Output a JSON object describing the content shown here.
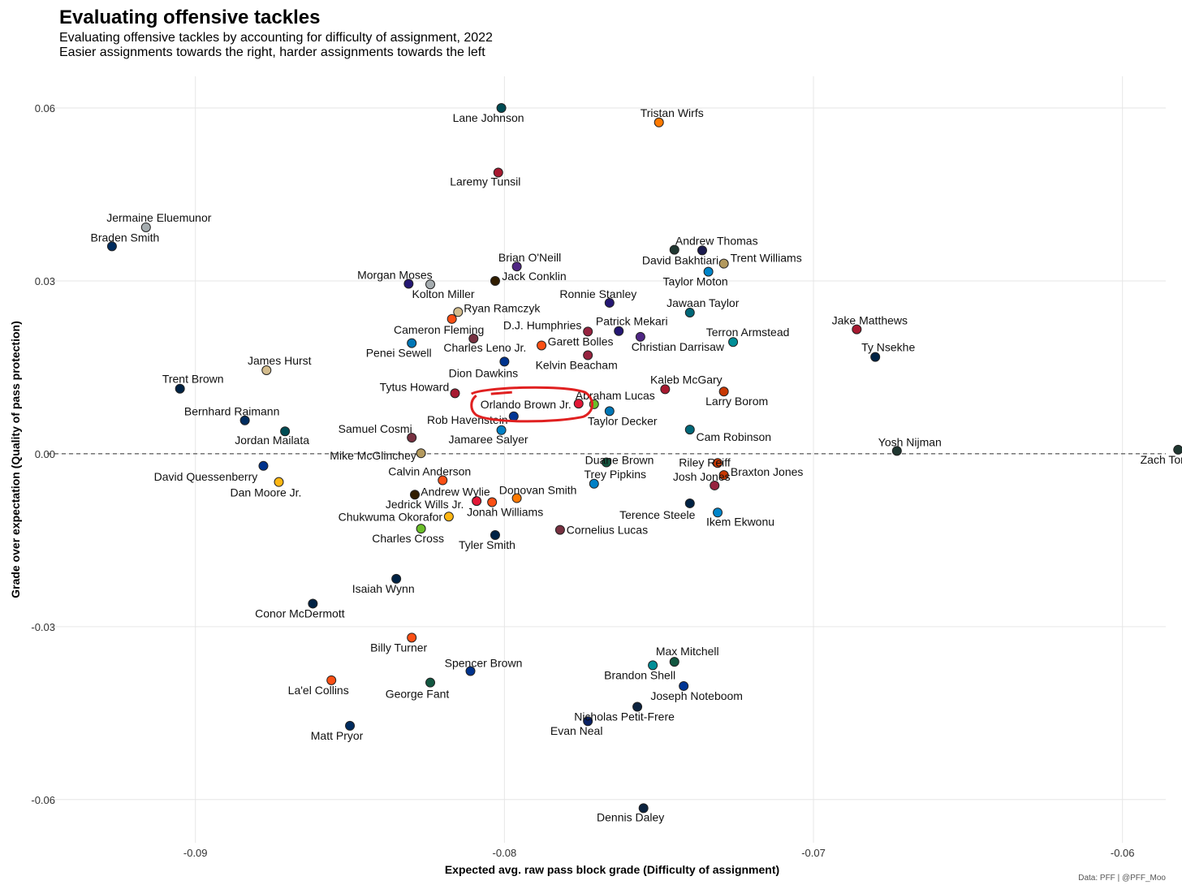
{
  "chart_data": {
    "type": "scatter",
    "title": "Evaluating offensive tackles",
    "subtitle": "Evaluating offensive tackles by accounting for difficulty of assignment, 2022",
    "subtitle2": "Easier assignments towards the right, harder assignments towards the left",
    "xlabel": "Expected avg. raw pass block grade (Difficulty of assignment)",
    "ylabel": "Grade over expectation (Quality of pass protection)",
    "caption": "Data: PFF | @PFF_Moo",
    "xlim": [
      -0.0948,
      -0.0586
    ],
    "ylim": [
      -0.0675,
      0.0655
    ],
    "x_ticks": [
      -0.09,
      -0.08,
      -0.07,
      -0.06
    ],
    "x_tick_labels": [
      "-0.09",
      "-0.08",
      "-0.07",
      "-0.06"
    ],
    "y_ticks": [
      0.06,
      0.03,
      0.0,
      -0.03,
      -0.06
    ],
    "y_tick_labels": [
      "0.06",
      "0.03",
      "0.00",
      "-0.03",
      "-0.06"
    ],
    "reference_line_y": 0.0,
    "highlight": "Orlando Brown Jr.",
    "points": [
      {
        "name": "Lane Johnson",
        "x": -0.0801,
        "y": 0.06,
        "color": "#004C54"
      },
      {
        "name": "Tristan Wirfs",
        "x": -0.075,
        "y": 0.0575,
        "color": "#FF7900"
      },
      {
        "name": "Laremy Tunsil",
        "x": -0.0802,
        "y": 0.0488,
        "color": "#A71930"
      },
      {
        "name": "Jermaine Eluemunor",
        "x": -0.0916,
        "y": 0.0393,
        "color": "#A5ACAF"
      },
      {
        "name": "Braden Smith",
        "x": -0.0927,
        "y": 0.036,
        "color": "#002C5F"
      },
      {
        "name": "Andrew Thomas",
        "x": -0.0745,
        "y": 0.0354,
        "color": "#203731"
      },
      {
        "name": "David Bakhtiari",
        "x": -0.0736,
        "y": 0.0353,
        "color": "#1A1A4E"
      },
      {
        "name": "Trent Williams",
        "x": -0.0729,
        "y": 0.033,
        "color": "#B3995D"
      },
      {
        "name": "Brian O'Neill",
        "x": -0.0796,
        "y": 0.0325,
        "color": "#4F2683"
      },
      {
        "name": "Taylor Moton",
        "x": -0.0734,
        "y": 0.0316,
        "color": "#0085CA"
      },
      {
        "name": "Jack Conklin",
        "x": -0.0803,
        "y": 0.03,
        "color": "#311D00"
      },
      {
        "name": "Morgan Moses",
        "x": -0.0831,
        "y": 0.0295,
        "color": "#241773"
      },
      {
        "name": "Kolton Miller",
        "x": -0.0824,
        "y": 0.0294,
        "color": "#A5ACAF"
      },
      {
        "name": "Ronnie Stanley",
        "x": -0.0766,
        "y": 0.0262,
        "color": "#241773"
      },
      {
        "name": "Jawaan Taylor",
        "x": -0.074,
        "y": 0.0245,
        "color": "#006778"
      },
      {
        "name": "Ryan Ramczyk",
        "x": -0.0815,
        "y": 0.0246,
        "color": "#D3BC8D"
      },
      {
        "name": "Cameron Fleming",
        "x": -0.0817,
        "y": 0.0234,
        "color": "#FB4F14"
      },
      {
        "name": "Jake Matthews",
        "x": -0.0686,
        "y": 0.0216,
        "color": "#A71930"
      },
      {
        "name": "D.J. Humphries",
        "x": -0.0773,
        "y": 0.0212,
        "color": "#97233F"
      },
      {
        "name": "Patrick Mekari",
        "x": -0.0763,
        "y": 0.0213,
        "color": "#241773"
      },
      {
        "name": "Christian Darrisaw",
        "x": -0.0756,
        "y": 0.0203,
        "color": "#4F2683"
      },
      {
        "name": "Charles Leno Jr.",
        "x": -0.081,
        "y": 0.02,
        "color": "#773141"
      },
      {
        "name": "Terron Armstead",
        "x": -0.0726,
        "y": 0.0194,
        "color": "#008E97"
      },
      {
        "name": "Penei Sewell",
        "x": -0.083,
        "y": 0.0192,
        "color": "#0076B6"
      },
      {
        "name": "Garett Bolles",
        "x": -0.0788,
        "y": 0.0188,
        "color": "#FB4F14"
      },
      {
        "name": "Kelvin Beacham",
        "x": -0.0773,
        "y": 0.0171,
        "color": "#97233F"
      },
      {
        "name": "Ty Nsekhe",
        "x": -0.068,
        "y": 0.0168,
        "color": "#002244"
      },
      {
        "name": "Dion Dawkins",
        "x": -0.08,
        "y": 0.016,
        "color": "#00338D"
      },
      {
        "name": "James Hurst",
        "x": -0.0877,
        "y": 0.0145,
        "color": "#D3BC8D"
      },
      {
        "name": "Trent Brown",
        "x": -0.0905,
        "y": 0.0113,
        "color": "#002244"
      },
      {
        "name": "Kaleb McGary",
        "x": -0.0748,
        "y": 0.0112,
        "color": "#A71930"
      },
      {
        "name": "Tytus Howard",
        "x": -0.0816,
        "y": 0.0105,
        "color": "#A71930"
      },
      {
        "name": "Larry Borom",
        "x": -0.0729,
        "y": 0.0108,
        "color": "#C83803"
      },
      {
        "name": "Orlando Brown Jr.",
        "x": -0.0776,
        "y": 0.0087,
        "color": "#E31837"
      },
      {
        "name": "Abraham Lucas",
        "x": -0.0771,
        "y": 0.0086,
        "color": "#69BE28"
      },
      {
        "name": "Taylor Decker",
        "x": -0.0766,
        "y": 0.0074,
        "color": "#0076B6"
      },
      {
        "name": "Rob Havenstein",
        "x": -0.0797,
        "y": 0.0065,
        "color": "#003594"
      },
      {
        "name": "Bernhard Raimann",
        "x": -0.0884,
        "y": 0.0058,
        "color": "#002C5F"
      },
      {
        "name": "Jordan Mailata",
        "x": -0.0871,
        "y": 0.0039,
        "color": "#004C54"
      },
      {
        "name": "Cam Robinson",
        "x": -0.074,
        "y": 0.0042,
        "color": "#006778"
      },
      {
        "name": "Jamaree Salyer",
        "x": -0.0801,
        "y": 0.0041,
        "color": "#0080C6"
      },
      {
        "name": "Samuel Cosmi",
        "x": -0.083,
        "y": 0.0028,
        "color": "#773141"
      },
      {
        "name": "Mike McGlinchey",
        "x": -0.0827,
        "y": 0.0001,
        "color": "#B3995D"
      },
      {
        "name": "Yosh Nijman",
        "x": -0.0673,
        "y": 0.0005,
        "color": "#203731"
      },
      {
        "name": "Zach Tom",
        "x": -0.0582,
        "y": 0.0007,
        "color": "#203731"
      },
      {
        "name": "Duane Brown",
        "x": -0.0767,
        "y": -0.0015,
        "color": "#125740"
      },
      {
        "name": "Riley Reiff",
        "x": -0.0731,
        "y": -0.0016,
        "color": "#C83803"
      },
      {
        "name": "David Quessenberry",
        "x": -0.0878,
        "y": -0.0021,
        "color": "#00338D"
      },
      {
        "name": "Braxton Jones",
        "x": -0.0729,
        "y": -0.0037,
        "color": "#C83803"
      },
      {
        "name": "Calvin Anderson",
        "x": -0.082,
        "y": -0.0046,
        "color": "#FB4F14"
      },
      {
        "name": "Dan Moore Jr.",
        "x": -0.0873,
        "y": -0.0049,
        "color": "#FFB612"
      },
      {
        "name": "Trey Pipkins",
        "x": -0.0771,
        "y": -0.0052,
        "color": "#0080C6"
      },
      {
        "name": "Josh Jones",
        "x": -0.0732,
        "y": -0.0055,
        "color": "#97233F"
      },
      {
        "name": "Andrew Wylie",
        "x": -0.0829,
        "y": -0.0071,
        "color": "#311D00"
      },
      {
        "name": "Donovan Smith",
        "x": -0.0796,
        "y": -0.0077,
        "color": "#FF7900"
      },
      {
        "name": "Jedrick Wills Jr.",
        "x": -0.0809,
        "y": -0.0082,
        "color": "#E31837"
      },
      {
        "name": "Jonah Williams",
        "x": -0.0804,
        "y": -0.0084,
        "color": "#FB4F14"
      },
      {
        "name": "Terence Steele",
        "x": -0.074,
        "y": -0.0086,
        "color": "#002244"
      },
      {
        "name": "Ikem Ekwonu",
        "x": -0.0731,
        "y": -0.0102,
        "color": "#0085CA"
      },
      {
        "name": "Chukwuma Okorafor",
        "x": -0.0818,
        "y": -0.0109,
        "color": "#FFB612"
      },
      {
        "name": "Charles Cross",
        "x": -0.0827,
        "y": -0.013,
        "color": "#69BE28"
      },
      {
        "name": "Cornelius Lucas",
        "x": -0.0782,
        "y": -0.0132,
        "color": "#773141"
      },
      {
        "name": "Tyler Smith",
        "x": -0.0803,
        "y": -0.0141,
        "color": "#002244"
      },
      {
        "name": "Isaiah Wynn",
        "x": -0.0835,
        "y": -0.0217,
        "color": "#002244"
      },
      {
        "name": "Conor McDermott",
        "x": -0.0862,
        "y": -0.026,
        "color": "#002244"
      },
      {
        "name": "Billy Turner",
        "x": -0.083,
        "y": -0.0319,
        "color": "#FB4F14"
      },
      {
        "name": "Max Mitchell",
        "x": -0.0745,
        "y": -0.0361,
        "color": "#125740"
      },
      {
        "name": "Brandon Shell",
        "x": -0.0752,
        "y": -0.0367,
        "color": "#008E97"
      },
      {
        "name": "Spencer Brown",
        "x": -0.0811,
        "y": -0.0377,
        "color": "#00338D"
      },
      {
        "name": "George Fant",
        "x": -0.0824,
        "y": -0.0397,
        "color": "#125740"
      },
      {
        "name": "La'el Collins",
        "x": -0.0856,
        "y": -0.0393,
        "color": "#FB4F14"
      },
      {
        "name": "Joseph Noteboom",
        "x": -0.0742,
        "y": -0.0403,
        "color": "#003594"
      },
      {
        "name": "Nicholas Petit-Frere",
        "x": -0.0757,
        "y": -0.0439,
        "color": "#0C2340"
      },
      {
        "name": "Evan Neal",
        "x": -0.0773,
        "y": -0.0464,
        "color": "#0B2265"
      },
      {
        "name": "Matt Pryor",
        "x": -0.085,
        "y": -0.0472,
        "color": "#002C5F"
      },
      {
        "name": "Dennis Daley",
        "x": -0.0755,
        "y": -0.0615,
        "color": "#0C2340"
      }
    ]
  }
}
